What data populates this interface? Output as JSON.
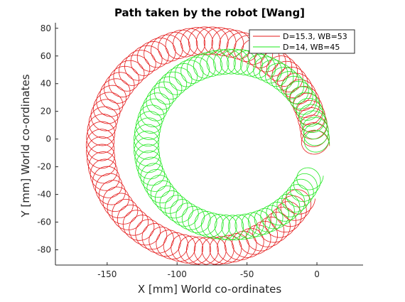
{
  "chart_data": {
    "type": "line",
    "title": "Path taken by the robot [Wang]",
    "xlabel": "X [mm] World co-ordinates",
    "ylabel": "Y [mm] World co-ordinates",
    "xlim": [
      -187,
      33
    ],
    "ylim": [
      -91,
      84
    ],
    "xticks": [
      -150,
      -100,
      -50,
      0
    ],
    "xtick_labels": [
      "-150",
      "-100",
      "-50",
      "0"
    ],
    "yticks": [
      -80,
      -60,
      -40,
      -20,
      0,
      20,
      40,
      60,
      80
    ],
    "ytick_labels": [
      "-80",
      "-60",
      "-40",
      "-20",
      "0",
      "20",
      "40",
      "60",
      "80"
    ],
    "grid": false,
    "legend_position": "top-right",
    "series": [
      {
        "name": "D=15.3, WB=53",
        "color": "#e41a1a",
        "center": [
          -78,
          -5
        ],
        "orbit_radius_x": 77,
        "orbit_radius_y": 76,
        "loop_radius": 10,
        "loops": 80,
        "start_angle_deg": 0,
        "sweep_deg": 330
      },
      {
        "name": "D=14, WB=45",
        "color": "#1ee81e",
        "center": [
          -61,
          -4
        ],
        "orbit_radius_x": 61,
        "orbit_radius_y": 60,
        "loop_radius": 9,
        "loops": 74,
        "start_angle_deg": 0,
        "sweep_deg": 338
      }
    ]
  }
}
